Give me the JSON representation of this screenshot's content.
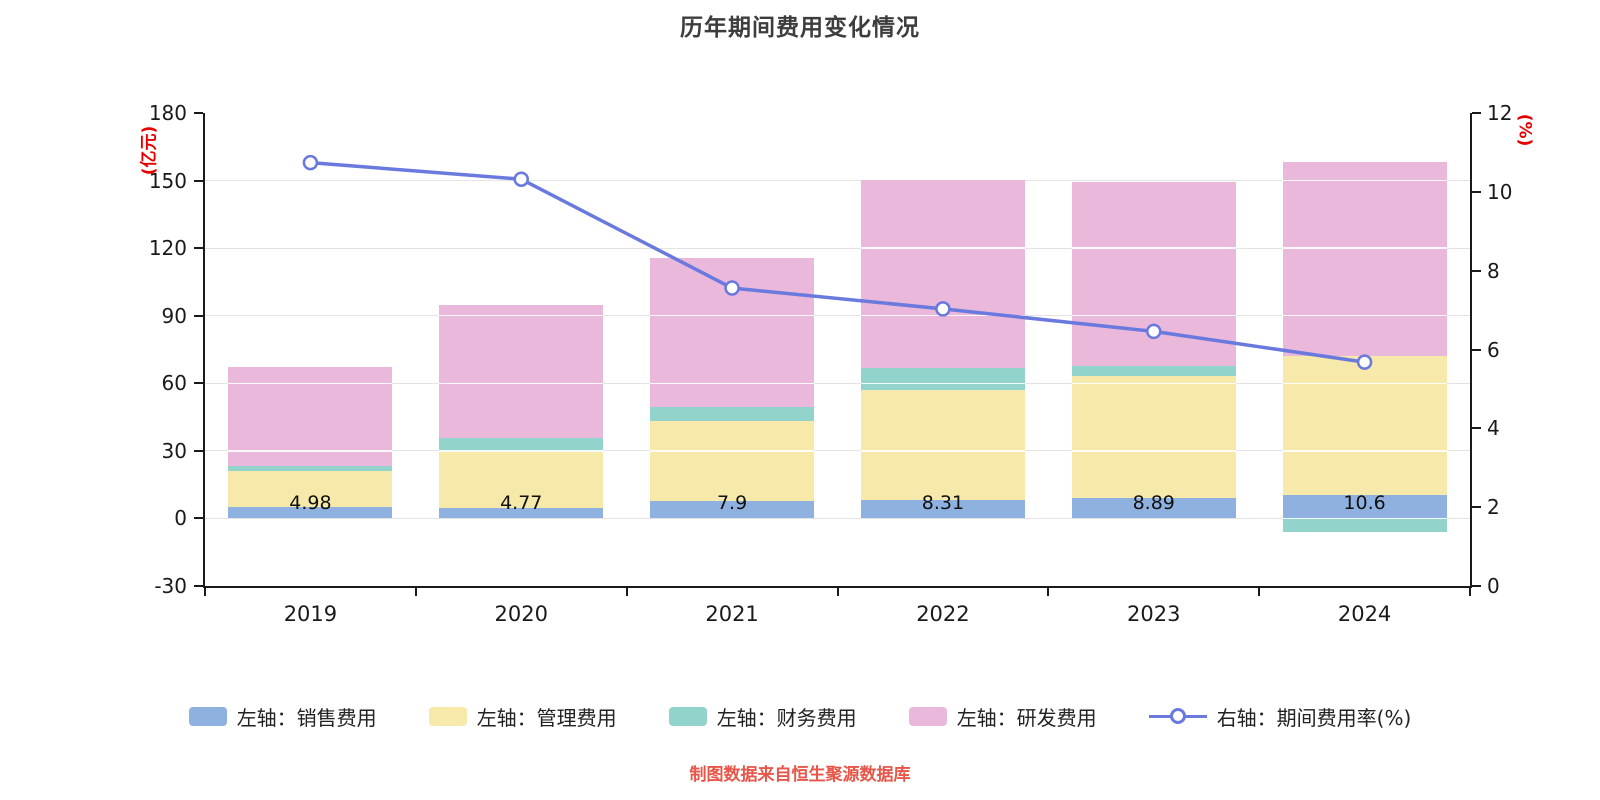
{
  "title": "历年期间费用变化情况",
  "caption": "制图数据来自恒生聚源数据库",
  "legend": [
    {
      "label": "左轴：销售费用",
      "color": "#8fb1e0",
      "type": "box"
    },
    {
      "label": "左轴：管理费用",
      "color": "#f6e9a9",
      "type": "box"
    },
    {
      "label": "左轴：财务费用",
      "color": "#92d3cc",
      "type": "box"
    },
    {
      "label": "左轴：研发费用",
      "color": "#e9b8da",
      "type": "box"
    },
    {
      "label": "右轴：期间费用率(%)",
      "color": "#6a79de",
      "type": "line"
    }
  ],
  "chart_data": {
    "type": "bar",
    "subtype": "stacked-bars-with-right-axis-line",
    "categories": [
      "2019",
      "2020",
      "2021",
      "2022",
      "2023",
      "2024"
    ],
    "bar_series": [
      {
        "name": "左轴：销售费用",
        "axis": "left",
        "color": "#8fb1e0",
        "values": [
          4.98,
          4.77,
          7.9,
          8.31,
          8.89,
          10.6
        ]
      },
      {
        "name": "左轴：管理费用",
        "axis": "left",
        "color": "#f6e9a9",
        "values": [
          16.2,
          24.6,
          35.2,
          48.7,
          54.3,
          61.5
        ]
      },
      {
        "name": "左轴：财务费用",
        "axis": "left",
        "color": "#92d3cc",
        "values": [
          2.3,
          6.5,
          6.3,
          9.8,
          4.7,
          -6
        ]
      },
      {
        "name": "左轴：研发费用",
        "axis": "left",
        "color": "#e9b8da",
        "values": [
          43.6,
          58.9,
          66.2,
          83.4,
          81.5,
          86.1
        ]
      }
    ],
    "line_series": {
      "name": "右轴：期间费用率(%)",
      "axis": "right",
      "color": "#6a79de",
      "values": [
        10.74,
        10.32,
        7.56,
        7.03,
        6.46,
        5.68
      ]
    },
    "bar_labels": [
      "4.98",
      "4.77",
      "7.9",
      "8.31",
      "8.89",
      "10.6"
    ],
    "left_axis": {
      "label": "(亿元)",
      "min": -30,
      "max": 180,
      "ticks": [
        180,
        150,
        120,
        90,
        60,
        30,
        0,
        -30
      ]
    },
    "right_axis": {
      "label": "(%)",
      "min": 0,
      "max": 12,
      "ticks": [
        12,
        10,
        8,
        6,
        4,
        2,
        0
      ]
    },
    "grid": "horizontal",
    "legend_position": "bottom"
  }
}
